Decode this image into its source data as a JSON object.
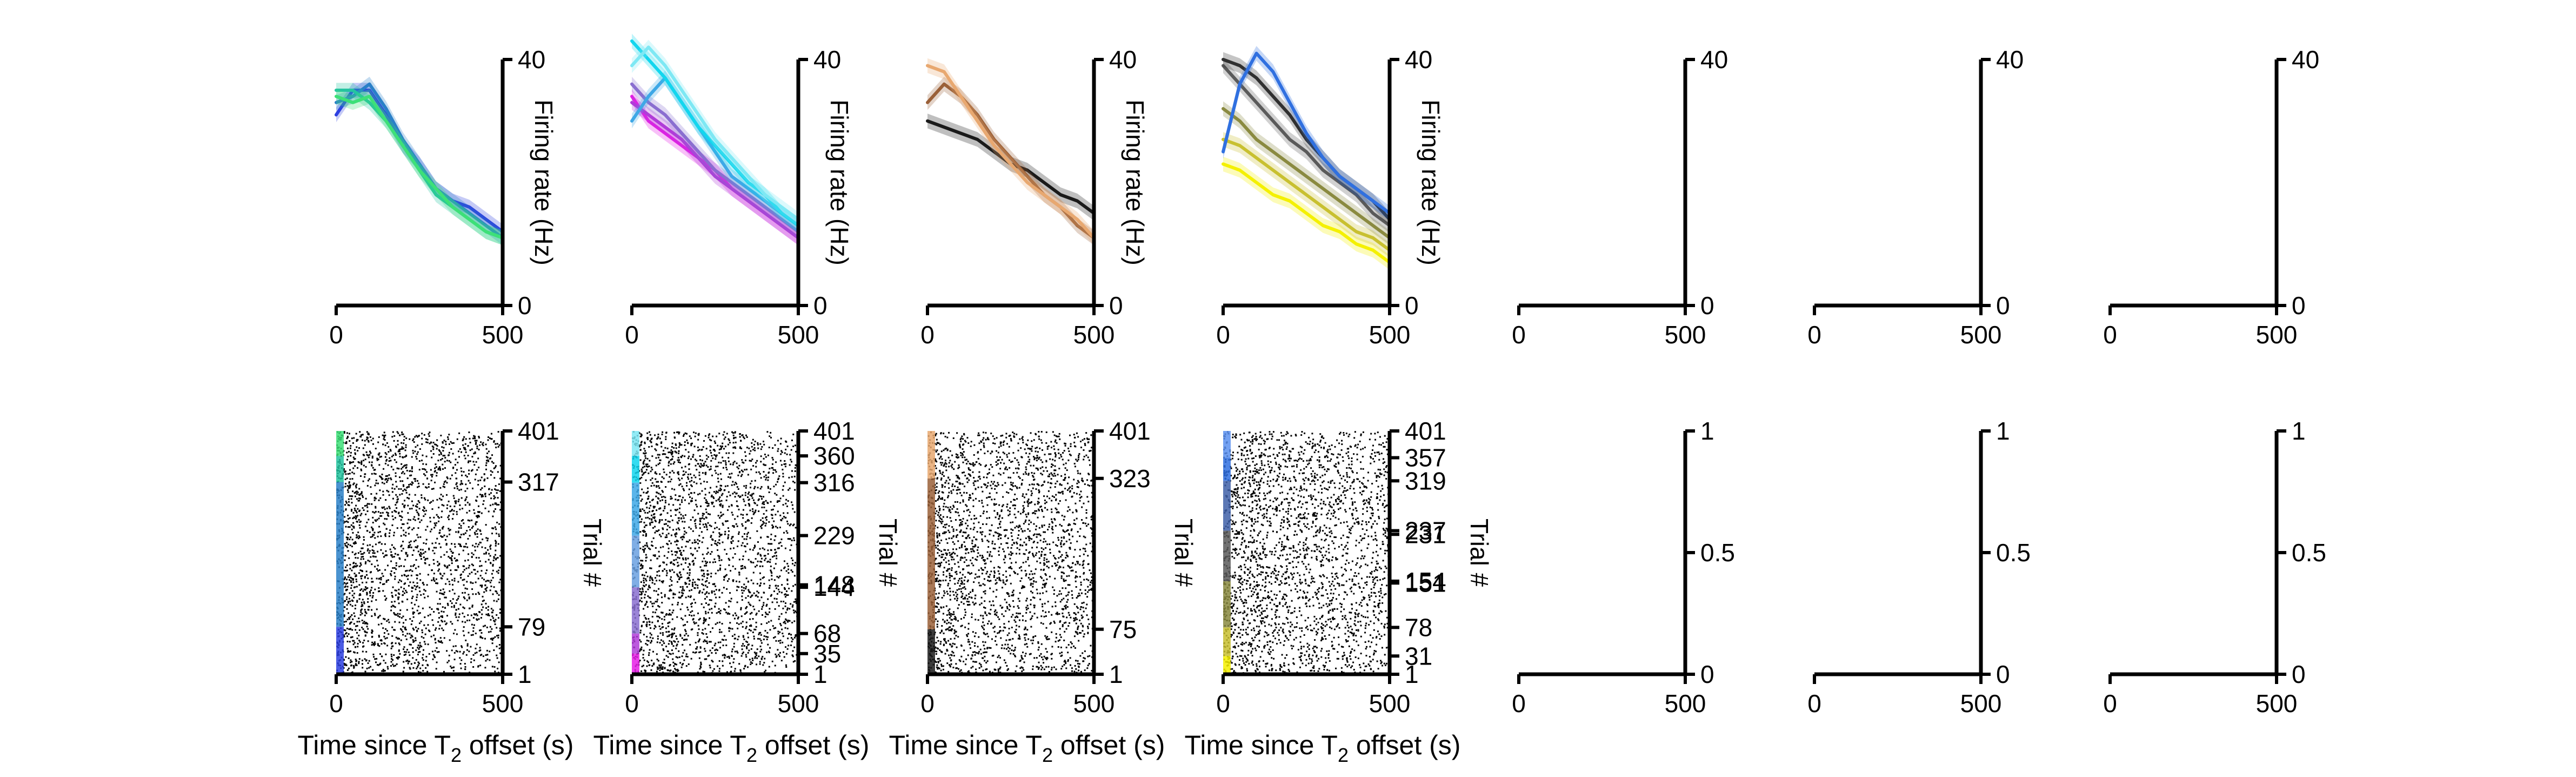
{
  "figure": {
    "panels_per_row": 7
  },
  "chart_data": [
    {
      "type": "line",
      "panel": "fr-1",
      "ylabel": "Firing rate (Hz)",
      "xlim": [
        0,
        500
      ],
      "ylim": [
        0,
        40
      ],
      "xticks": [
        "0",
        "500"
      ],
      "yticks": [
        "0",
        "40"
      ],
      "series": [
        {
          "color": "#2d3fe0",
          "x": [
            0,
            50,
            100,
            150,
            200,
            250,
            300,
            350,
            400,
            450,
            500
          ],
          "y": [
            31,
            35,
            35,
            31,
            26,
            23,
            19,
            17,
            16,
            14,
            12
          ]
        },
        {
          "color": "#2a80c8",
          "x": [
            0,
            50,
            100,
            150,
            200,
            250,
            300,
            350,
            400,
            450,
            500
          ],
          "y": [
            33,
            34,
            36,
            32,
            27,
            23,
            19,
            17,
            15,
            13,
            11
          ]
        },
        {
          "color": "#24c4a0",
          "x": [
            0,
            50,
            100,
            150,
            200,
            250,
            300,
            350,
            400,
            450,
            500
          ],
          "y": [
            35,
            35,
            33,
            30,
            26,
            22,
            18,
            16,
            14,
            12,
            11
          ]
        },
        {
          "color": "#3de078",
          "x": [
            0,
            50,
            100,
            150,
            200,
            250,
            300,
            350,
            400,
            450,
            500
          ],
          "y": [
            34,
            33,
            34,
            30,
            26,
            22,
            19,
            16,
            14,
            12,
            11
          ]
        }
      ]
    },
    {
      "type": "line",
      "panel": "fr-2",
      "ylabel": "Firing rate (Hz)",
      "xlim": [
        0,
        500
      ],
      "ylim": [
        0,
        40
      ],
      "xticks": [
        "0",
        "500"
      ],
      "yticks": [
        "0",
        "40"
      ],
      "series": [
        {
          "color": "#e61ee6",
          "x": [
            0,
            50,
            100,
            150,
            200,
            250,
            300,
            350,
            400,
            450,
            500
          ],
          "y": [
            34,
            30,
            28,
            26,
            24,
            22,
            19,
            17,
            15,
            13,
            11
          ]
        },
        {
          "color": "#b03cd8",
          "x": [
            0,
            50,
            100,
            150,
            200,
            250,
            300,
            350,
            400,
            450,
            500
          ],
          "y": [
            33,
            31,
            29,
            27,
            24,
            21,
            19,
            17,
            15,
            13,
            11
          ]
        },
        {
          "color": "#8a6ed0",
          "x": [
            0,
            50,
            100,
            150,
            200,
            250,
            300,
            350,
            400,
            450,
            500
          ],
          "y": [
            36,
            33,
            31,
            28,
            25,
            22,
            20,
            18,
            16,
            14,
            12
          ]
        },
        {
          "color": "#3ea8e6",
          "x": [
            0,
            50,
            100,
            150,
            200,
            250,
            300,
            350,
            400,
            450,
            500
          ],
          "y": [
            30,
            34,
            37,
            33,
            29,
            25,
            21,
            19,
            17,
            15,
            13
          ]
        },
        {
          "color": "#12d6ee",
          "x": [
            0,
            50,
            100,
            150,
            200,
            250,
            300,
            350,
            400,
            450,
            500
          ],
          "y": [
            43,
            40,
            37,
            33,
            29,
            26,
            23,
            20,
            18,
            15,
            13
          ]
        },
        {
          "color": "#7ee8f4",
          "x": [
            0,
            50,
            100,
            150,
            200,
            250,
            300,
            350,
            400,
            450,
            500
          ],
          "y": [
            39,
            42,
            39,
            35,
            31,
            27,
            24,
            21,
            18,
            16,
            14
          ]
        }
      ]
    },
    {
      "type": "line",
      "panel": "fr-3",
      "ylabel": "Firing rate (Hz)",
      "xlim": [
        0,
        500
      ],
      "ylim": [
        0,
        40
      ],
      "xticks": [
        "0",
        "500"
      ],
      "yticks": [
        "0",
        "40"
      ],
      "series": [
        {
          "color": "#1a1a1a",
          "x": [
            0,
            50,
            100,
            150,
            200,
            250,
            300,
            350,
            400,
            450,
            500
          ],
          "y": [
            30,
            29,
            28,
            27,
            25,
            23,
            22,
            20,
            18,
            17,
            15
          ]
        },
        {
          "color": "#9a6038",
          "x": [
            0,
            50,
            100,
            150,
            200,
            250,
            300,
            350,
            400,
            450,
            500
          ],
          "y": [
            33,
            36,
            34,
            31,
            27,
            24,
            21,
            18,
            16,
            13,
            11
          ]
        },
        {
          "color": "#e8a870",
          "x": [
            0,
            50,
            100,
            150,
            200,
            250,
            300,
            350,
            400,
            450,
            500
          ],
          "y": [
            39,
            38,
            34,
            30,
            26,
            23,
            20,
            18,
            16,
            14,
            11
          ]
        }
      ]
    },
    {
      "type": "line",
      "panel": "fr-4",
      "ylabel": "Firing rate (Hz)",
      "xlim": [
        0,
        500
      ],
      "ylim": [
        0,
        40
      ],
      "xticks": [
        "0",
        "500"
      ],
      "yticks": [
        "0",
        "40"
      ],
      "series": [
        {
          "color": "#f4f000",
          "x": [
            0,
            50,
            100,
            150,
            200,
            250,
            300,
            350,
            400,
            450,
            500
          ],
          "y": [
            23,
            22,
            20,
            18,
            17,
            15,
            13,
            12,
            10,
            9,
            7
          ]
        },
        {
          "color": "#c8c030",
          "x": [
            0,
            50,
            100,
            150,
            200,
            250,
            300,
            350,
            400,
            450,
            500
          ],
          "y": [
            27,
            26,
            24,
            22,
            20,
            18,
            16,
            14,
            12,
            11,
            9
          ]
        },
        {
          "color": "#8a8a40",
          "x": [
            0,
            50,
            100,
            150,
            200,
            250,
            300,
            350,
            400,
            450,
            500
          ],
          "y": [
            32,
            30,
            27,
            25,
            23,
            21,
            19,
            17,
            15,
            13,
            11
          ]
        },
        {
          "color": "#5a5a5a",
          "x": [
            0,
            50,
            100,
            150,
            200,
            250,
            300,
            350,
            400,
            450,
            500
          ],
          "y": [
            39,
            36,
            33,
            30,
            27,
            25,
            22,
            20,
            18,
            15,
            13
          ]
        },
        {
          "color": "#303030",
          "x": [
            0,
            50,
            100,
            150,
            200,
            250,
            300,
            350,
            400,
            450,
            500
          ],
          "y": [
            40,
            39,
            37,
            34,
            31,
            27,
            24,
            21,
            19,
            17,
            14
          ]
        },
        {
          "color": "#3070e0",
          "x": [
            0,
            50,
            100,
            150,
            200,
            250,
            300,
            350,
            400,
            450,
            500
          ],
          "y": [
            25,
            36,
            41,
            38,
            33,
            28,
            24,
            21,
            19,
            17,
            15
          ]
        }
      ]
    },
    {
      "type": "line",
      "panel": "fr-5",
      "xlim": [
        0,
        500
      ],
      "ylim": [
        0,
        40
      ],
      "xticks": [
        "0",
        "500"
      ],
      "yticks": [
        "0",
        "40"
      ],
      "series": []
    },
    {
      "type": "line",
      "panel": "fr-6",
      "xlim": [
        0,
        500
      ],
      "ylim": [
        0,
        40
      ],
      "xticks": [
        "0",
        "500"
      ],
      "yticks": [
        "0",
        "40"
      ],
      "series": []
    },
    {
      "type": "line",
      "panel": "fr-7",
      "xlim": [
        0,
        500
      ],
      "ylim": [
        0,
        40
      ],
      "xticks": [
        "0",
        "500"
      ],
      "yticks": [
        "0",
        "40"
      ],
      "series": []
    },
    {
      "type": "scatter",
      "panel": "raster-1",
      "xlabel": "Time since T2 offset (s)",
      "ylabel": "Trial #",
      "xlim": [
        0,
        500
      ],
      "ylim": [
        1,
        401
      ],
      "xticks": [
        "0",
        "500"
      ],
      "yticks": [
        1,
        79,
        317,
        401
      ],
      "groups": [
        {
          "color": "#2d3fe0",
          "from": 1,
          "to": 79
        },
        {
          "color": "#2a80c8",
          "from": 79,
          "to": 317
        },
        {
          "color": "#24c4a0",
          "from": 317,
          "to": 360
        },
        {
          "color": "#3de078",
          "from": 360,
          "to": 401
        }
      ]
    },
    {
      "type": "scatter",
      "panel": "raster-2",
      "xlabel": "Time since T2 offset (s)",
      "ylabel": "Trial #",
      "xlim": [
        0,
        500
      ],
      "ylim": [
        1,
        401
      ],
      "xticks": [
        "0",
        "500"
      ],
      "yticks": [
        1,
        35,
        68,
        144,
        148,
        229,
        316,
        360,
        401
      ],
      "groups": [
        {
          "color": "#e61ee6",
          "from": 1,
          "to": 35
        },
        {
          "color": "#b03cd8",
          "from": 35,
          "to": 68
        },
        {
          "color": "#8a6ed0",
          "from": 68,
          "to": 144
        },
        {
          "color": "#6aa0e0",
          "from": 144,
          "to": 229
        },
        {
          "color": "#3ea8e6",
          "from": 229,
          "to": 316
        },
        {
          "color": "#12d6ee",
          "from": 316,
          "to": 360
        },
        {
          "color": "#7ee8f4",
          "from": 360,
          "to": 401
        }
      ]
    },
    {
      "type": "scatter",
      "panel": "raster-3",
      "xlabel": "Time since T2 offset (s)",
      "ylabel": "Trial #",
      "xlim": [
        0,
        500
      ],
      "ylim": [
        1,
        401
      ],
      "xticks": [
        "0",
        "500"
      ],
      "yticks": [
        1,
        75,
        323,
        401
      ],
      "groups": [
        {
          "color": "#1a1a1a",
          "from": 1,
          "to": 75
        },
        {
          "color": "#9a6038",
          "from": 75,
          "to": 323
        },
        {
          "color": "#e8a870",
          "from": 323,
          "to": 401
        }
      ]
    },
    {
      "type": "scatter",
      "panel": "raster-4",
      "xlabel": "Time since T2 offset (s)",
      "ylabel": "Trial #",
      "xlim": [
        0,
        500
      ],
      "ylim": [
        1,
        401
      ],
      "xticks": [
        "0",
        "500"
      ],
      "yticks": [
        1,
        31,
        78,
        151,
        154,
        231,
        237,
        319,
        357,
        401
      ],
      "groups": [
        {
          "color": "#f4f000",
          "from": 1,
          "to": 31
        },
        {
          "color": "#c8c030",
          "from": 31,
          "to": 78
        },
        {
          "color": "#8a8a40",
          "from": 78,
          "to": 154
        },
        {
          "color": "#5a5a5a",
          "from": 154,
          "to": 237
        },
        {
          "color": "#4060a8",
          "from": 237,
          "to": 319
        },
        {
          "color": "#3070e0",
          "from": 319,
          "to": 357
        },
        {
          "color": "#5a90f0",
          "from": 357,
          "to": 401
        }
      ]
    },
    {
      "type": "scatter",
      "panel": "raster-5",
      "xlim": [
        0,
        500
      ],
      "ylim": [
        0,
        1
      ],
      "xticks": [
        "0",
        "500"
      ],
      "yticks": [
        0,
        0.5,
        1
      ],
      "groups": []
    },
    {
      "type": "scatter",
      "panel": "raster-6",
      "xlim": [
        0,
        500
      ],
      "ylim": [
        0,
        1
      ],
      "xticks": [
        "0",
        "500"
      ],
      "yticks": [
        0,
        0.5,
        1
      ],
      "groups": []
    },
    {
      "type": "scatter",
      "panel": "raster-7",
      "xlim": [
        0,
        500
      ],
      "ylim": [
        0,
        1
      ],
      "xticks": [
        "0",
        "500"
      ],
      "yticks": [
        0,
        0.5,
        1
      ],
      "groups": []
    }
  ]
}
